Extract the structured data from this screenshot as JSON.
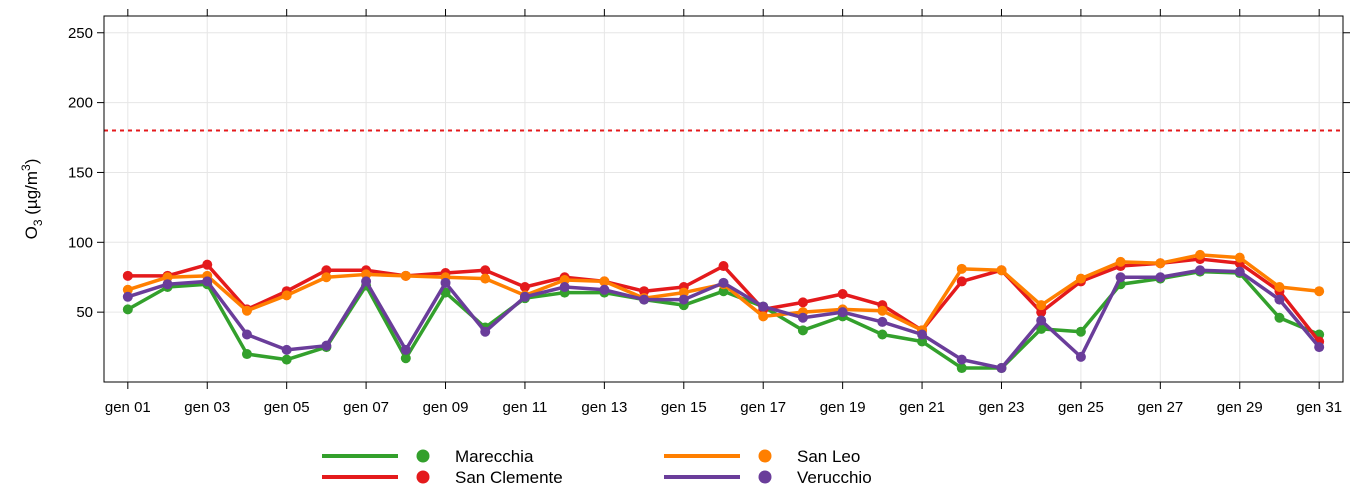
{
  "chart_data": {
    "type": "line",
    "xlabel": "",
    "ylabel": "O3 (µg/m3)",
    "ylabel_parts": {
      "base": "O",
      "sub": "3",
      "mid": " (µg/m",
      "sup": "3",
      "end": ")"
    },
    "x": [
      1,
      2,
      3,
      4,
      5,
      6,
      7,
      8,
      9,
      10,
      11,
      12,
      13,
      14,
      15,
      16,
      17,
      18,
      19,
      20,
      21,
      22,
      23,
      24,
      25,
      26,
      27,
      28,
      29,
      30,
      31
    ],
    "x_ticks": [
      1,
      3,
      5,
      7,
      9,
      11,
      13,
      15,
      17,
      19,
      21,
      23,
      25,
      27,
      29,
      31
    ],
    "x_tick_labels": [
      "gen 01",
      "gen 03",
      "gen 05",
      "gen 07",
      "gen 09",
      "gen 11",
      "gen 13",
      "gen 15",
      "gen 17",
      "gen 19",
      "gen 21",
      "gen 23",
      "gen 25",
      "gen 27",
      "gen 29",
      "gen 31"
    ],
    "xlim": [
      0.4,
      31.6
    ],
    "y_ticks": [
      50,
      100,
      150,
      200,
      250
    ],
    "y_tick_labels": [
      "50",
      "100",
      "150",
      "200",
      "250"
    ],
    "ylim": [
      0,
      262
    ],
    "grid": true,
    "threshold": {
      "value": 180,
      "color": "#e41a1c",
      "style": "dotted"
    },
    "legend_position": "bottom",
    "series": [
      {
        "name": "Marecchia",
        "color": "#33a02c",
        "values": [
          52,
          68,
          70,
          20,
          16,
          25,
          69,
          17,
          64,
          39,
          60,
          64,
          64,
          59,
          55,
          65,
          54,
          37,
          47,
          34,
          29,
          10,
          10,
          38,
          36,
          70,
          74,
          79,
          78,
          46,
          34
        ]
      },
      {
        "name": "San Clemente",
        "color": "#e41a1c",
        "values": [
          76,
          76,
          84,
          52,
          65,
          80,
          80,
          76,
          78,
          80,
          68,
          75,
          72,
          65,
          68,
          83,
          52,
          57,
          63,
          55,
          37,
          72,
          80,
          50,
          72,
          83,
          85,
          88,
          85,
          65,
          29
        ]
      },
      {
        "name": "San Leo",
        "color": "#ff7f00",
        "values": [
          66,
          75,
          76,
          51,
          62,
          75,
          77,
          76,
          75,
          74,
          62,
          73,
          72,
          60,
          64,
          70,
          47,
          50,
          52,
          51,
          37,
          81,
          80,
          55,
          74,
          86,
          85,
          91,
          89,
          68,
          65
        ]
      },
      {
        "name": "Verucchio",
        "color": "#6a3d9a",
        "values": [
          61,
          70,
          72,
          34,
          23,
          26,
          72,
          23,
          71,
          36,
          61,
          68,
          66,
          59,
          59,
          71,
          54,
          46,
          50,
          43,
          34,
          16,
          10,
          44,
          18,
          75,
          75,
          80,
          79,
          59,
          25
        ]
      }
    ]
  }
}
